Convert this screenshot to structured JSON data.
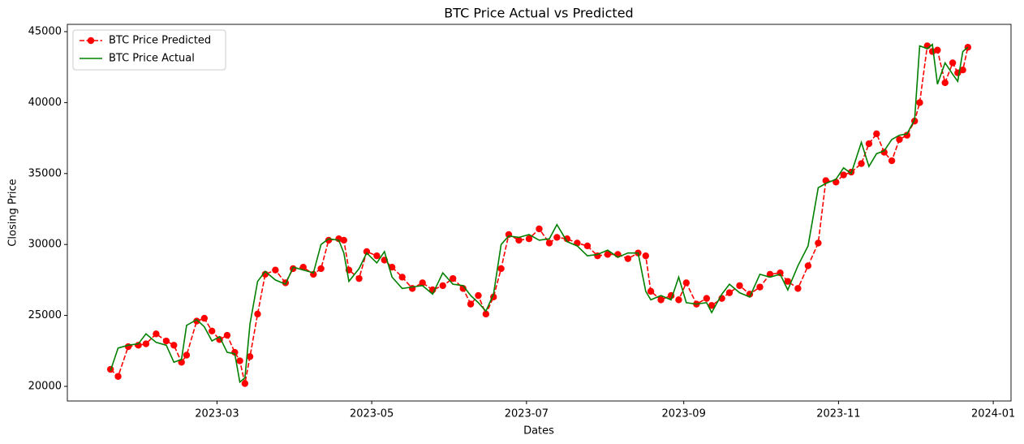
{
  "chart_data": {
    "type": "line",
    "title": "BTC Price Actual vs Predicted",
    "x_label": "Dates",
    "y_label": "Closing Price",
    "x": [
      "2023-01-18",
      "2023-01-21",
      "2023-01-25",
      "2023-01-29",
      "2023-02-01",
      "2023-02-05",
      "2023-02-09",
      "2023-02-12",
      "2023-02-15",
      "2023-02-17",
      "2023-02-21",
      "2023-02-24",
      "2023-02-27",
      "2023-03-02",
      "2023-03-05",
      "2023-03-08",
      "2023-03-10",
      "2023-03-12",
      "2023-03-14",
      "2023-03-17",
      "2023-03-20",
      "2023-03-24",
      "2023-03-28",
      "2023-03-31",
      "2023-04-04",
      "2023-04-08",
      "2023-04-11",
      "2023-04-14",
      "2023-04-18",
      "2023-04-20",
      "2023-04-22",
      "2023-04-26",
      "2023-04-29",
      "2023-05-03",
      "2023-05-06",
      "2023-05-09",
      "2023-05-13",
      "2023-05-17",
      "2023-05-21",
      "2023-05-25",
      "2023-05-29",
      "2023-06-02",
      "2023-06-06",
      "2023-06-09",
      "2023-06-12",
      "2023-06-15",
      "2023-06-18",
      "2023-06-21",
      "2023-06-24",
      "2023-06-28",
      "2023-07-02",
      "2023-07-06",
      "2023-07-10",
      "2023-07-13",
      "2023-07-17",
      "2023-07-21",
      "2023-07-25",
      "2023-07-29",
      "2023-08-02",
      "2023-08-06",
      "2023-08-10",
      "2023-08-14",
      "2023-08-17",
      "2023-08-19",
      "2023-08-23",
      "2023-08-27",
      "2023-08-30",
      "2023-09-02",
      "2023-09-06",
      "2023-09-10",
      "2023-09-12",
      "2023-09-16",
      "2023-09-19",
      "2023-09-23",
      "2023-09-27",
      "2023-10-01",
      "2023-10-05",
      "2023-10-09",
      "2023-10-12",
      "2023-10-16",
      "2023-10-20",
      "2023-10-24",
      "2023-10-27",
      "2023-10-31",
      "2023-11-03",
      "2023-11-06",
      "2023-11-10",
      "2023-11-13",
      "2023-11-16",
      "2023-11-19",
      "2023-11-22",
      "2023-11-25",
      "2023-11-28",
      "2023-12-01",
      "2023-12-03",
      "2023-12-06",
      "2023-12-08",
      "2023-12-10",
      "2023-12-13",
      "2023-12-16",
      "2023-12-18",
      "2023-12-20",
      "2023-12-22"
    ],
    "series": [
      {
        "name": "BTC Price Predicted",
        "color": "#ff0000",
        "linestyle": "dashed",
        "marker": "o",
        "values": [
          21200,
          20700,
          22800,
          22900,
          23000,
          23700,
          23200,
          22900,
          21700,
          22200,
          24600,
          24800,
          23900,
          23300,
          23600,
          22400,
          21800,
          20200,
          22100,
          25100,
          27900,
          28200,
          27300,
          28300,
          28400,
          27900,
          28300,
          30300,
          30400,
          30300,
          28200,
          27600,
          29500,
          29200,
          28900,
          28400,
          27700,
          26900,
          27300,
          26800,
          27100,
          27600,
          26900,
          25800,
          26400,
          25100,
          26300,
          28300,
          30700,
          30300,
          30400,
          31100,
          30100,
          30500,
          30400,
          30100,
          29900,
          29200,
          29300,
          29300,
          29000,
          29400,
          29200,
          26700,
          26100,
          26400,
          26100,
          27300,
          25800,
          26200,
          25700,
          26200,
          26600,
          27100,
          26500,
          27000,
          27900,
          28000,
          27400,
          26900,
          28500,
          30100,
          34500,
          34400,
          34900,
          35100,
          35700,
          37100,
          37800,
          36500,
          35900,
          37400,
          37700,
          38700,
          40000,
          44000,
          43600,
          43700,
          41400,
          42800,
          42100,
          42300,
          43900
        ]
      },
      {
        "name": "BTC Price Actual",
        "color": "#008000",
        "linestyle": "solid",
        "values": [
          21100,
          22700,
          22900,
          23000,
          23700,
          23100,
          22900,
          21700,
          21900,
          24300,
          24700,
          24200,
          23200,
          23500,
          22400,
          22300,
          20300,
          20600,
          24400,
          27400,
          28100,
          27500,
          27200,
          28400,
          28200,
          28000,
          30000,
          30400,
          30300,
          29400,
          27400,
          28300,
          29400,
          28700,
          29500,
          27700,
          26900,
          27000,
          27100,
          26500,
          28000,
          27200,
          27100,
          26400,
          25900,
          25300,
          26500,
          30000,
          30600,
          30500,
          30700,
          30300,
          30400,
          31400,
          30200,
          29900,
          29200,
          29300,
          29600,
          29100,
          29400,
          29400,
          26700,
          26100,
          26400,
          26100,
          27700,
          25900,
          25800,
          25900,
          25200,
          26500,
          27200,
          26600,
          26300,
          27900,
          27700,
          27900,
          26800,
          28500,
          29900,
          34000,
          34300,
          34600,
          35400,
          35000,
          37200,
          35500,
          36400,
          36600,
          37400,
          37700,
          37800,
          38800,
          44000,
          43800,
          44100,
          41300,
          42800,
          42000,
          41500,
          43600,
          43900
        ]
      }
    ],
    "xlim": [
      "2023-01-01",
      "2024-01-08"
    ],
    "xticks": [
      {
        "value": "2023-03-01",
        "label": "2023-03"
      },
      {
        "value": "2023-05-01",
        "label": "2023-05"
      },
      {
        "value": "2023-07-01",
        "label": "2023-07"
      },
      {
        "value": "2023-09-01",
        "label": "2023-09"
      },
      {
        "value": "2023-11-01",
        "label": "2023-11"
      },
      {
        "value": "2024-01-01",
        "label": "2024-01"
      }
    ],
    "ylim": [
      18970,
      45515
    ],
    "yticks": [
      20000,
      25000,
      30000,
      35000,
      40000,
      45000
    ],
    "legend": "upper left"
  }
}
